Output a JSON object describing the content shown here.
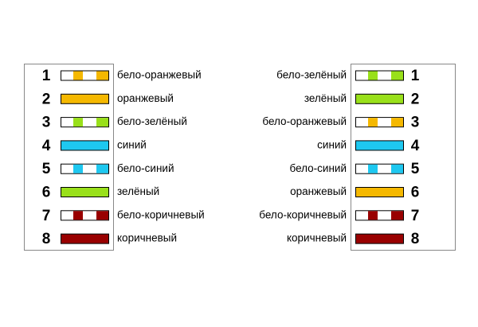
{
  "left": {
    "pins": [
      {
        "number": 1,
        "label": "бело-оранжевый",
        "color": "#f5b800",
        "striped": true
      },
      {
        "number": 2,
        "label": "оранжевый",
        "color": "#f5b800",
        "striped": false
      },
      {
        "number": 3,
        "label": "бело-зелёный",
        "color": "#99e01a",
        "striped": true
      },
      {
        "number": 4,
        "label": "синий",
        "color": "#1ec8f0",
        "striped": false
      },
      {
        "number": 5,
        "label": "бело-синий",
        "color": "#1ec8f0",
        "striped": true
      },
      {
        "number": 6,
        "label": "зелёный",
        "color": "#99e01a",
        "striped": false
      },
      {
        "number": 7,
        "label": "бело-коричневый",
        "color": "#990000",
        "striped": true
      },
      {
        "number": 8,
        "label": "коричневый",
        "color": "#990000",
        "striped": false
      }
    ]
  },
  "right": {
    "pins": [
      {
        "number": 1,
        "label": "бело-зелёный",
        "color": "#99e01a",
        "striped": true
      },
      {
        "number": 2,
        "label": "зелёный",
        "color": "#99e01a",
        "striped": false
      },
      {
        "number": 3,
        "label": "бело-оранжевый",
        "color": "#f5b800",
        "striped": true
      },
      {
        "number": 4,
        "label": "синий",
        "color": "#1ec8f0",
        "striped": false
      },
      {
        "number": 5,
        "label": "бело-синий",
        "color": "#1ec8f0",
        "striped": true
      },
      {
        "number": 6,
        "label": "оранжевый",
        "color": "#f5b800",
        "striped": false
      },
      {
        "number": 7,
        "label": "бело-коричневый",
        "color": "#990000",
        "striped": true
      },
      {
        "number": 8,
        "label": "коричневый",
        "color": "#990000",
        "striped": false
      }
    ]
  }
}
